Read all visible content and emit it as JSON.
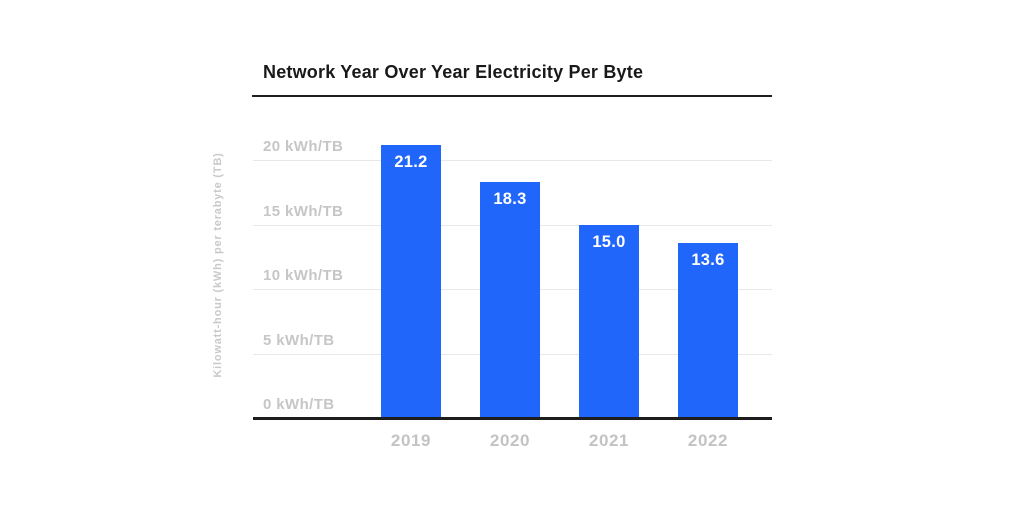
{
  "chart_data": {
    "type": "bar",
    "title": "Network Year Over Year Electricity Per Byte",
    "ylabel": "Kilowatt-hour (kWh) per terabyte (TB)",
    "xlabel": "",
    "categories": [
      "2019",
      "2020",
      "2021",
      "2022"
    ],
    "values": [
      21.2,
      18.3,
      15.0,
      13.6
    ],
    "bar_labels": [
      "21.2",
      "18.3",
      "15.0",
      "13.6"
    ],
    "yticks": [
      {
        "value": 0,
        "label": "0 kWh/TB"
      },
      {
        "value": 5,
        "label": "5 kWh/TB"
      },
      {
        "value": 10,
        "label": "10 kWh/TB"
      },
      {
        "value": 15,
        "label": "15 kWh/TB"
      },
      {
        "value": 20,
        "label": "20 kWh/TB"
      }
    ],
    "ylim": [
      0,
      20
    ],
    "grid": true,
    "legend": "none",
    "colors": {
      "bar": "#2166fb",
      "grid": "#e8e8e8",
      "tick_label": "#c6c6c6",
      "axis_line": "#1d1d1d",
      "bar_label": "#ffffff",
      "title": "#191919"
    }
  }
}
